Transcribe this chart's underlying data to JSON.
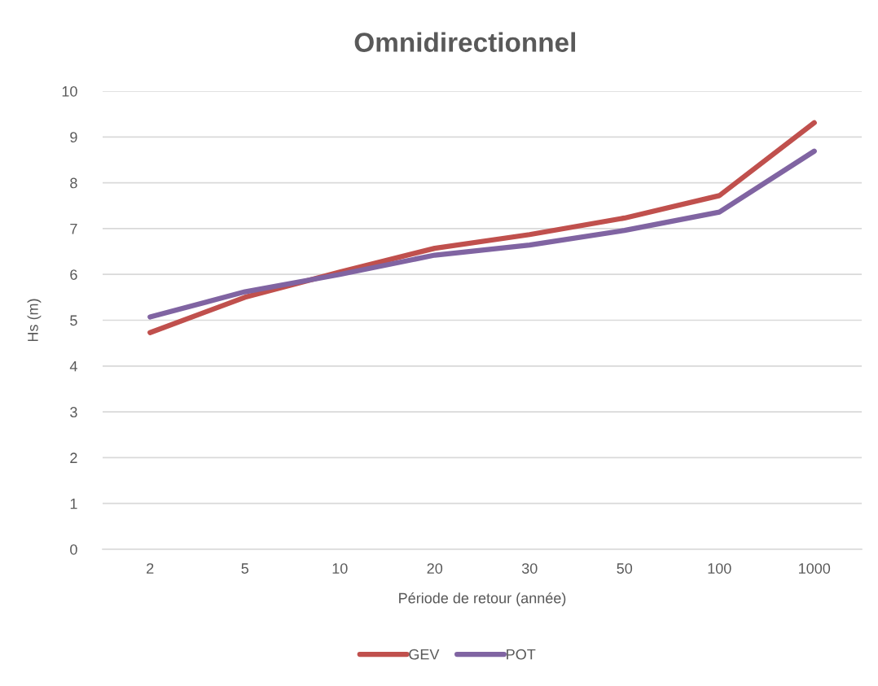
{
  "chart_data": {
    "type": "line",
    "title": "Omnidirectionnel",
    "xlabel": "Période de retour (année)",
    "ylabel": "Hs (m)",
    "categories": [
      "2",
      "5",
      "10",
      "20",
      "30",
      "50",
      "100",
      "1000"
    ],
    "series": [
      {
        "name": "GEV",
        "color": "#c0504d",
        "values": [
          4.73,
          5.5,
          6.05,
          6.57,
          6.87,
          7.23,
          7.72,
          9.31
        ]
      },
      {
        "name": "POT",
        "color": "#8064a2",
        "values": [
          5.07,
          5.62,
          6.0,
          6.42,
          6.64,
          6.96,
          7.36,
          8.69
        ]
      }
    ],
    "ylim": [
      0,
      10
    ],
    "yticks": [
      0,
      1,
      2,
      3,
      4,
      5,
      6,
      7,
      8,
      9,
      10
    ],
    "grid": "y",
    "legend": "bottom",
    "marker": "none",
    "line_style": "solid"
  }
}
